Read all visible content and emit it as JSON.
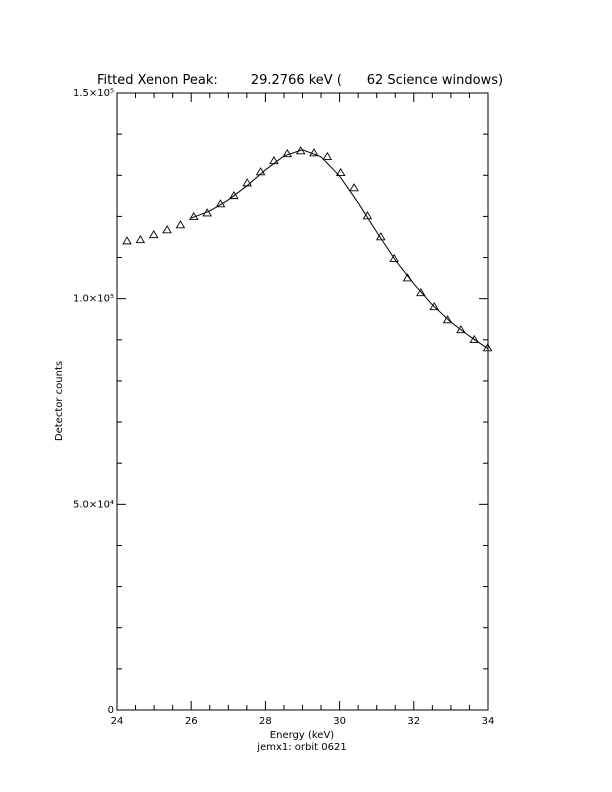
{
  "chart_data": {
    "type": "scatter",
    "title": "Fitted Xenon Peak:        29.2766 keV (      62 Science windows)",
    "x_label": "Energy (keV)",
    "subtitle": "jemx1: orbit 0621",
    "y_label": "Detector counts",
    "xlim": [
      24,
      34
    ],
    "xticks": [
      24,
      26,
      28,
      30,
      32,
      34
    ],
    "xminor": 4,
    "ylim": [
      0,
      150000
    ],
    "yticks": [
      0,
      {
        "value": 50000,
        "label": "5.0×10⁴"
      },
      {
        "value": 100000,
        "label": "1.0×10⁵"
      },
      {
        "value": 150000,
        "label": "1.5×10⁵"
      }
    ],
    "yminor": 5,
    "series": [
      {
        "marker": "triangle",
        "color": "#000000",
        "x": [
          24.27,
          24.63,
          24.99,
          25.35,
          25.71,
          26.07,
          26.43,
          26.79,
          27.15,
          27.51,
          27.87,
          28.23,
          28.59,
          28.95,
          29.31,
          29.67,
          30.03,
          30.39,
          30.75,
          31.11,
          31.47,
          31.83,
          32.19,
          32.55,
          32.91,
          33.27,
          33.63,
          33.99
        ],
        "values": [
          114000,
          114300,
          115500,
          116700,
          117900,
          119900,
          120800,
          123000,
          125000,
          128100,
          130800,
          133500,
          135200,
          135900,
          135400,
          134500,
          130600,
          126900,
          120100,
          115000,
          109700,
          105000,
          101400,
          98000,
          94800,
          92400,
          90000,
          88000
        ]
      },
      {
        "marker": "line",
        "color": "#000000",
        "x": [
          26,
          26.5,
          27,
          27.5,
          28,
          28.5,
          29,
          29.5,
          30,
          30.5,
          31,
          31.5,
          32,
          32.5,
          33,
          33.5,
          34
        ],
        "values": [
          119600,
          121300,
          124000,
          127400,
          131300,
          134700,
          136200,
          134500,
          129800,
          123300,
          116200,
          109400,
          103600,
          98500,
          94300,
          90900,
          87800
        ]
      }
    ]
  }
}
